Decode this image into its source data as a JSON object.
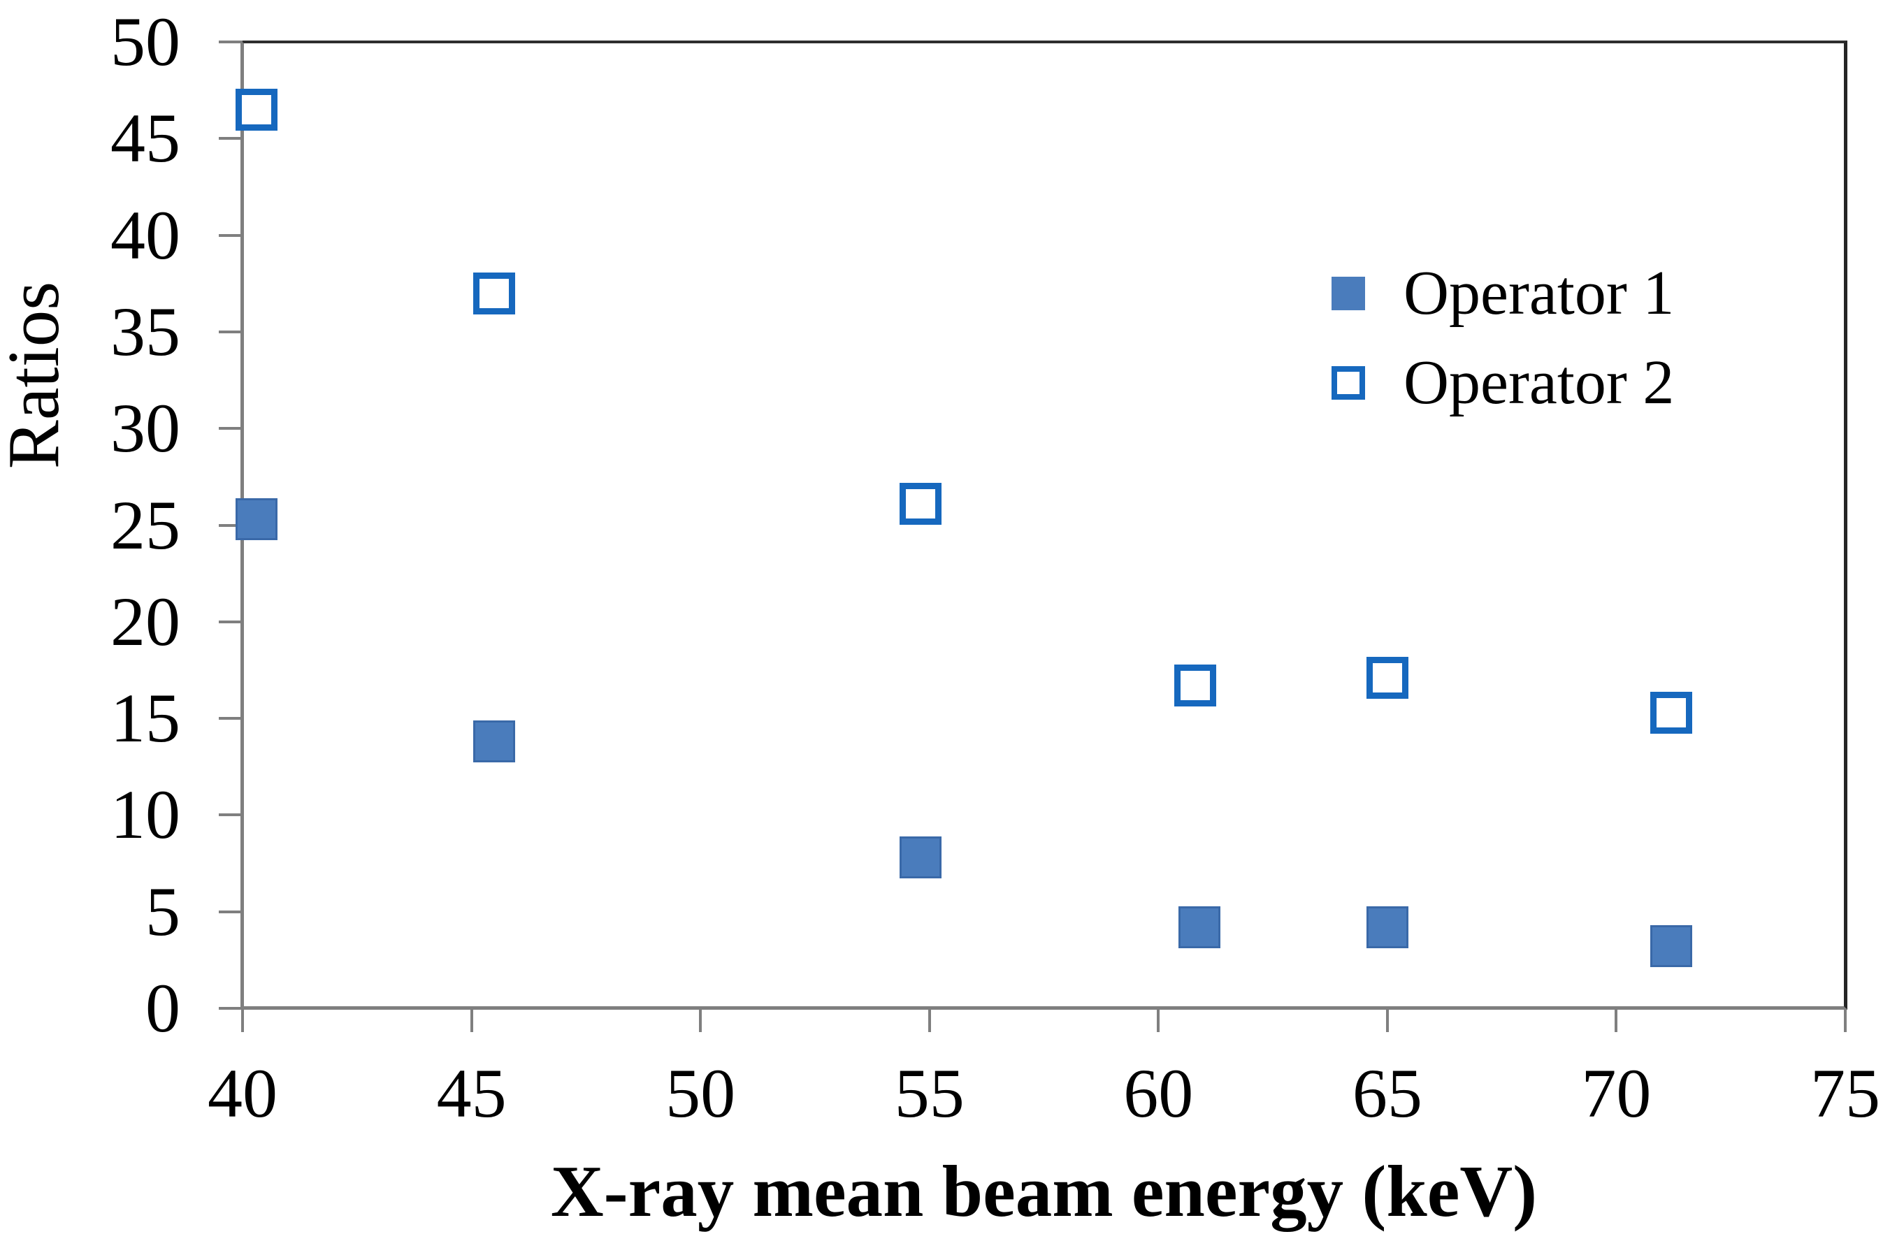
{
  "figure": {
    "background": "#ffffff"
  },
  "chart_data": {
    "type": "scatter",
    "title": "",
    "xlabel": "X-ray mean beam energy (keV)",
    "ylabel": "Ratios",
    "xlim": [
      40,
      75
    ],
    "ylim": [
      0,
      50
    ],
    "x_ticks": [
      40,
      45,
      50,
      55,
      60,
      65,
      70,
      75
    ],
    "y_ticks": [
      0,
      5,
      10,
      15,
      20,
      25,
      30,
      35,
      40,
      45,
      50
    ],
    "grid": false,
    "legend_position": "top-right-inside",
    "series": [
      {
        "name": "Operator 1",
        "marker": "filled-square",
        "fill_color": "#4a7cbc",
        "border_color": "#3a69a8",
        "points": [
          [
            40.3,
            25.3
          ],
          [
            45.5,
            13.8
          ],
          [
            54.8,
            7.8
          ],
          [
            60.9,
            4.2
          ],
          [
            65.0,
            4.2
          ],
          [
            71.2,
            3.2
          ]
        ]
      },
      {
        "name": "Operator 2",
        "marker": "open-square",
        "fill_color": "#ffffff",
        "border_color": "#1668be",
        "points": [
          [
            40.3,
            46.5
          ],
          [
            45.5,
            37.0
          ],
          [
            54.8,
            26.1
          ],
          [
            60.8,
            16.7
          ],
          [
            65.0,
            17.1
          ],
          [
            71.2,
            15.3
          ]
        ]
      }
    ],
    "axis": {
      "axis_line_color": "#7f7f7f",
      "plot_border_color": "#262626",
      "tick_color": "#7f7f7f",
      "label_color": "#000000"
    }
  }
}
